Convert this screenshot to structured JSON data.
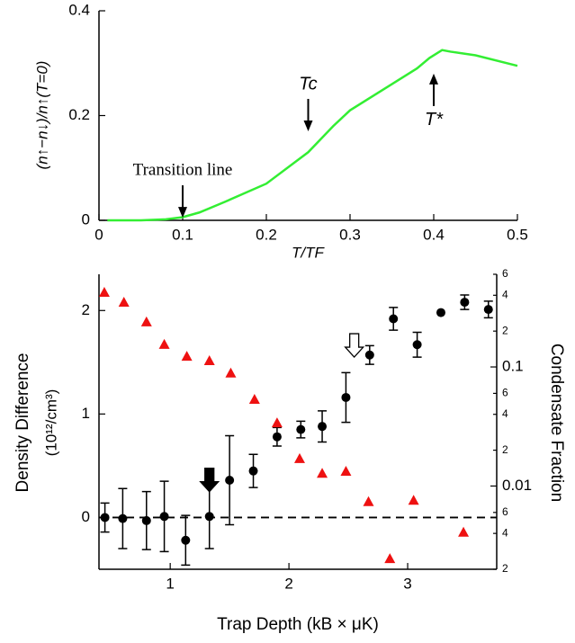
{
  "chart_data": [
    {
      "type": "line",
      "ylabel": "(n↑−n↓)/n↑(T=0)",
      "xlabel": "T/TF",
      "x": [
        0.01,
        0.05,
        0.08,
        0.1,
        0.12,
        0.15,
        0.2,
        0.25,
        0.28,
        0.3,
        0.35,
        0.38,
        0.395,
        0.41,
        0.42,
        0.45,
        0.5
      ],
      "values": [
        0,
        0,
        0.002,
        0.006,
        0.015,
        0.035,
        0.07,
        0.13,
        0.18,
        0.21,
        0.26,
        0.29,
        0.31,
        0.325,
        0.322,
        0.315,
        0.295
      ],
      "color": "#33ee33",
      "xlim": [
        0,
        0.5
      ],
      "xticks": [
        0,
        0.1,
        0.2,
        0.3,
        0.4,
        0.5
      ],
      "ylim": [
        0,
        0.4
      ],
      "yticks": [
        0,
        0.2,
        0.4
      ],
      "annotations": [
        {
          "text": "Transition line",
          "x": 0.1,
          "y": 0.005,
          "direction": "down"
        },
        {
          "text": "Tc",
          "x": 0.25,
          "y": 0.17,
          "direction": "down"
        },
        {
          "text": "T*",
          "x": 0.4,
          "y": 0.28,
          "direction": "up"
        }
      ]
    },
    {
      "type": "scatter",
      "xlabel": "Trap Depth (kB × μK)",
      "ylabel": [
        "Density Difference",
        "(10¹²/cm³)"
      ],
      "y2label": "Condensate Fraction",
      "xlim": [
        0.4,
        3.75
      ],
      "xticks": [
        1,
        2,
        3
      ],
      "ylim": [
        -0.5,
        2.35
      ],
      "yticks": [
        0,
        1,
        2
      ],
      "y2lim": [
        0.002,
        0.6
      ],
      "y2log": true,
      "y2ticks": [
        {
          "value": 0.002,
          "label": "2"
        },
        {
          "value": 0.004,
          "label": "4"
        },
        {
          "value": 0.006,
          "label": "6"
        },
        0.01,
        {
          "value": 0.02,
          "label": "2"
        },
        {
          "value": 0.04,
          "label": "4"
        },
        {
          "value": 0.06,
          "label": "6"
        },
        0.1,
        {
          "value": 0.2,
          "label": "2"
        },
        {
          "value": 0.4,
          "label": "4"
        },
        {
          "value": 0.6,
          "label": "6"
        }
      ],
      "reference_line": 0,
      "series": [
        {
          "color": "#000000",
          "marker": "circle",
          "axis": "y",
          "x": [
            0.45,
            0.6,
            0.8,
            0.95,
            1.13,
            1.33,
            1.5,
            1.7,
            1.9,
            2.1,
            2.28,
            2.48,
            2.68,
            2.88,
            3.08,
            3.28,
            3.48,
            3.68
          ],
          "values": [
            0,
            -0.01,
            -0.03,
            0.01,
            -0.22,
            0.01,
            0.36,
            0.45,
            0.78,
            0.85,
            0.88,
            1.16,
            1.57,
            1.92,
            1.67,
            1.98,
            2.08,
            2.01
          ],
          "errors": [
            0.14,
            0.29,
            0.28,
            0.34,
            0.24,
            0.31,
            0.43,
            0.16,
            0.09,
            0.08,
            0.15,
            0.24,
            0.09,
            0.11,
            0.12,
            null,
            0.07,
            0.08
          ]
        },
        {
          "color": "#ee1111",
          "marker": "triangle",
          "axis": "y2",
          "x": [
            0.445,
            0.61,
            0.8,
            0.95,
            1.14,
            1.33,
            1.51,
            1.71,
            1.9,
            2.09,
            2.28,
            2.48,
            2.67,
            2.85,
            3.05,
            3.47
          ],
          "values": [
            0.424,
            0.35,
            0.239,
            0.155,
            0.123,
            0.113,
            0.089,
            0.0535,
            0.034,
            0.017,
            0.0128,
            0.0133,
            0.0074,
            0.00246,
            0.0076,
            0.0041
          ]
        }
      ],
      "annotations": [
        {
          "x": 1.33,
          "y": 0.25,
          "style": "filled"
        },
        {
          "x": 2.55,
          "y": 1.55,
          "style": "open"
        }
      ]
    }
  ]
}
